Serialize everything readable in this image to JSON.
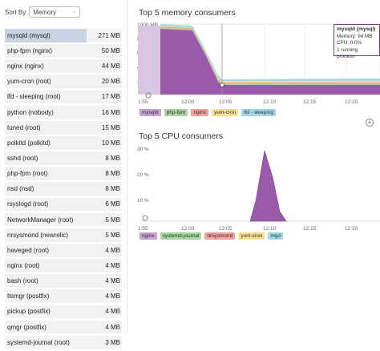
{
  "sort": {
    "label": "Sort By",
    "selected": "Memory"
  },
  "processes": [
    {
      "name": "mysqld (mysql)",
      "value": "271 MB",
      "fraction": 0.7
    },
    {
      "name": "php-fpm (nginx)",
      "value": "50 MB",
      "fraction": 0
    },
    {
      "name": "nginx (nginx)",
      "value": "44 MB",
      "fraction": 0
    },
    {
      "name": "yum-cron (root)",
      "value": "20 MB",
      "fraction": 0
    },
    {
      "name": "lfd - sleeping (root)",
      "value": "17 MB",
      "fraction": 0
    },
    {
      "name": "python (nobody)",
      "value": "16 MB",
      "fraction": 0
    },
    {
      "name": "tuned (root)",
      "value": "15 MB",
      "fraction": 0
    },
    {
      "name": "polkitd (polkitd)",
      "value": "10 MB",
      "fraction": 0
    },
    {
      "name": "sshd (root)",
      "value": "8 MB",
      "fraction": 0
    },
    {
      "name": "php-fpm (root)",
      "value": "8 MB",
      "fraction": 0
    },
    {
      "name": "nsd (nsd)",
      "value": "8 MB",
      "fraction": 0
    },
    {
      "name": "rsyslogd (root)",
      "value": "6 MB",
      "fraction": 0
    },
    {
      "name": "NetworkManager (root)",
      "value": "5 MB",
      "fraction": 0
    },
    {
      "name": "nrsysmond (newrelic)",
      "value": "5 MB",
      "fraction": 0
    },
    {
      "name": "haveged (root)",
      "value": "4 MB",
      "fraction": 0
    },
    {
      "name": "nginx (root)",
      "value": "4 MB",
      "fraction": 0
    },
    {
      "name": "bash (root)",
      "value": "4 MB",
      "fraction": 0
    },
    {
      "name": "tlsmgr (postfix)",
      "value": "4 MB",
      "fraction": 0
    },
    {
      "name": "pickup (postfix)",
      "value": "4 MB",
      "fraction": 0
    },
    {
      "name": "qmgr (postfix)",
      "value": "4 MB",
      "fraction": 0
    },
    {
      "name": "systemd-journal (root)",
      "value": "3 MB",
      "fraction": 0
    }
  ],
  "memory_panel": {
    "title": "Top 5 memory consumers",
    "yticks": [
      "1000 MB",
      "800 MB",
      "600 MB",
      "400 MB",
      "200 MB"
    ],
    "xticks": [
      "1:55",
      "12:00",
      "12:05",
      "12:10",
      "12:15",
      "12:20"
    ],
    "legend": [
      {
        "label": "mysqld",
        "color": "#c8a2d0"
      },
      {
        "label": "php-fpm",
        "color": "#a7d6a0"
      },
      {
        "label": "nginx",
        "color": "#f0a29a"
      },
      {
        "label": "yum-cron",
        "color": "#f6df8f"
      },
      {
        "label": "lfd - sleeping",
        "color": "#9fd9e8"
      }
    ],
    "tooltip": {
      "title": "mysqld (mysql)",
      "memory": "Memory: 94 MB",
      "cpu": "CPU: 0.0%",
      "running": "1 running process"
    }
  },
  "cpu_panel": {
    "title": "Top 5 CPU consumers",
    "yticks": [
      "30 %",
      "20 %",
      "10 %"
    ],
    "xticks": [
      "1:55",
      "12:00",
      "12:05",
      "12:10",
      "12:15",
      "12:20"
    ],
    "legend": [
      {
        "label": "nginx",
        "color": "#c8a2d0"
      },
      {
        "label": "systemd-journal",
        "color": "#a7d6a0"
      },
      {
        "label": "nrsysmond",
        "color": "#f0a29a"
      },
      {
        "label": "yum-cron",
        "color": "#f6df8f"
      },
      {
        "label": "mgd",
        "color": "#9fd9e8"
      }
    ]
  },
  "colors": {
    "accent": "#8b4e9e",
    "mysqld_fill": "#9b5bab"
  },
  "icons": {
    "zoom": "plus-circle-icon",
    "reset": "reset-icon"
  }
}
